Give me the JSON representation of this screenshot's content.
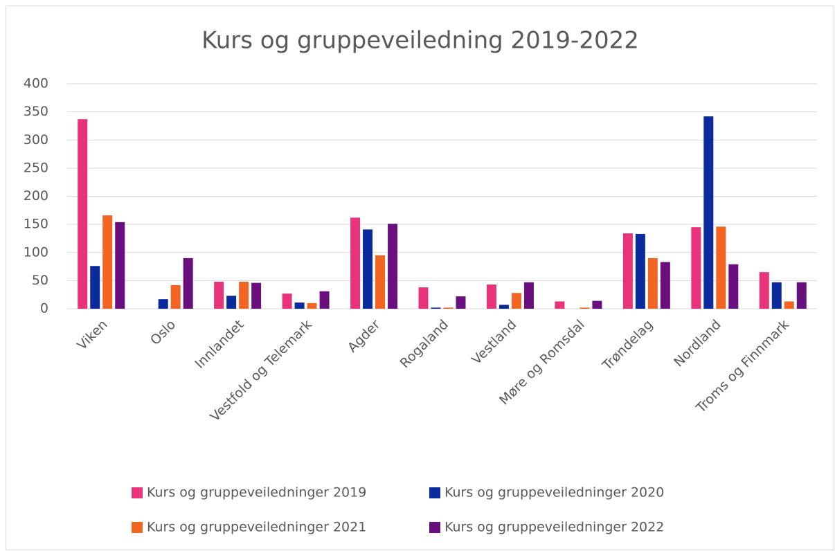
{
  "chart_data": {
    "type": "bar",
    "title": "Kurs og gruppeveiledning 2019-2022",
    "categories": [
      "Viken",
      "Oslo",
      "Innlandet",
      "Vestfold og Telemark",
      "Agder",
      "Rogaland",
      "Vestland",
      "Møre og Romsdal",
      "Trøndelag",
      "Nordland",
      "Troms og Finnmark"
    ],
    "series": [
      {
        "name": "Kurs og gruppeveiledninger 2019",
        "color": "#e8337a",
        "values": [
          337,
          0,
          48,
          27,
          162,
          38,
          43,
          13,
          134,
          145,
          65
        ]
      },
      {
        "name": "Kurs og gruppeveiledninger 2020",
        "color": "#0b2a9c",
        "values": [
          76,
          17,
          23,
          11,
          141,
          2,
          7,
          0,
          133,
          342,
          47
        ]
      },
      {
        "name": "Kurs og gruppeveiledninger 2021",
        "color": "#f26522",
        "values": [
          166,
          42,
          48,
          10,
          95,
          2,
          28,
          2,
          90,
          146,
          13
        ]
      },
      {
        "name": "Kurs og gruppeveiledninger 2022",
        "color": "#6a0f7e",
        "values": [
          154,
          90,
          46,
          31,
          151,
          22,
          47,
          14,
          83,
          79,
          47
        ]
      }
    ],
    "ylim": [
      0,
      400
    ],
    "yticks": [
      0,
      50,
      100,
      150,
      200,
      250,
      300,
      350,
      400
    ],
    "grid": true,
    "legend": "bottom"
  }
}
